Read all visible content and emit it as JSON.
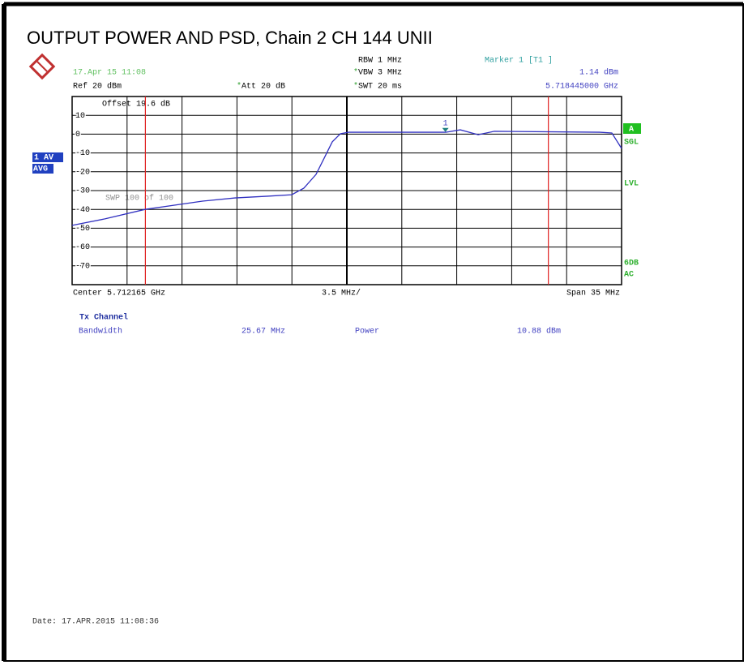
{
  "chart_data": {
    "type": "line",
    "title": "OUTPUT POWER AND PSD, Chain 2 CH 144 UNII",
    "header": {
      "timestamp": "17.Apr 15 11:08",
      "ref": "Ref  20 dBm",
      "att": "Att  20 dB",
      "rbw": "RBW 1 MHz",
      "vbw": "VBW 3 MHz",
      "swt": "SWT 20 ms",
      "marker_name": "Marker 1 [T1 ]",
      "marker_level": "1.14 dBm",
      "marker_freq": "5.718445000 GHz"
    },
    "offset": "Offset  19.6 dB",
    "sweep": "SWP   100 of   100",
    "side_labels": {
      "trace": "1 AV",
      "detector": "AVG",
      "screen": "A",
      "mode": "SGL",
      "level": "LVL",
      "att_mode": "6DB",
      "coupling": "AC"
    },
    "footer": {
      "center": "Center 5.712165 GHz",
      "div": "3.5 MHz/",
      "span": "Span 35 MHz"
    },
    "table": {
      "heading": "Tx Channel",
      "rows": [
        [
          "Bandwidth",
          "25.67 MHz",
          "Power",
          "10.88 dBm"
        ]
      ]
    },
    "date": "Date: 17.APR.2015  11:08:36",
    "xlim": [
      5.694665,
      5.729665
    ],
    "ylim": [
      -80,
      20
    ],
    "yticks": [
      10,
      0,
      -10,
      -20,
      -30,
      -40,
      -50,
      -60,
      -70
    ],
    "channel_lines": [
      5.6993315,
      5.7250015
    ],
    "channel_color": "#e02020",
    "marker": {
      "x": 5.718445,
      "y": 1.14,
      "label": "1"
    },
    "series": [
      {
        "name": "1 AV",
        "color": "#3030c0",
        "x": [
          5.694665,
          5.696782,
          5.699311,
          5.702976,
          5.705041,
          5.707106,
          5.708655,
          5.709429,
          5.710203,
          5.710719,
          5.711236,
          5.711752,
          5.712268,
          5.718463,
          5.719392,
          5.720528,
          5.72156,
          5.728271,
          5.729046,
          5.729665
        ],
        "values": [
          -48.5,
          -45,
          -40,
          -35.6,
          -33.9,
          -33,
          -32.2,
          -28.7,
          -21.4,
          -12.8,
          -4.1,
          0.2,
          1,
          1,
          2.3,
          -0.3,
          1.5,
          1,
          0.6,
          -7.6
        ]
      }
    ]
  }
}
